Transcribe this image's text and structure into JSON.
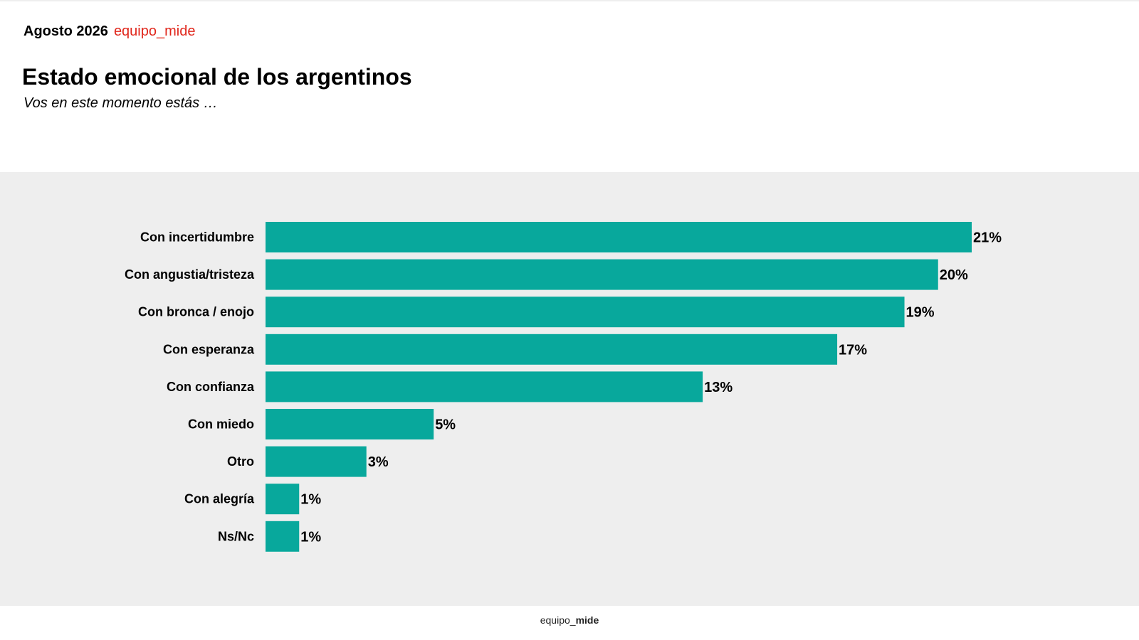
{
  "header": {
    "date": "Agosto 2026",
    "brand": "equipo_mide"
  },
  "footer": {
    "brand_prefix": "equipo_",
    "brand_suffix": "mide"
  },
  "colors": {
    "bar": "#08a89c",
    "plot_background": "#eeeeee",
    "brand": "#e0261b"
  },
  "chart_data": {
    "type": "bar",
    "orientation": "horizontal",
    "title": "Estado emocional de los argentinos",
    "subtitle": "Vos en este momento estás …",
    "categories": [
      "Con incertidumbre",
      "Con angustia/tristeza",
      "Con bronca / enojo",
      "Con esperanza",
      "Con confianza",
      "Con miedo",
      "Otro",
      "Con alegría",
      "Ns/Nc"
    ],
    "values": [
      21,
      20,
      19,
      17,
      13,
      5,
      3,
      1,
      1
    ],
    "labels": [
      "21%",
      "20%",
      "19%",
      "17%",
      "13%",
      "5%",
      "3%",
      "1%",
      "1%"
    ],
    "unit": "%",
    "xlim": [
      0,
      21
    ],
    "grid": false,
    "legend": "none"
  }
}
